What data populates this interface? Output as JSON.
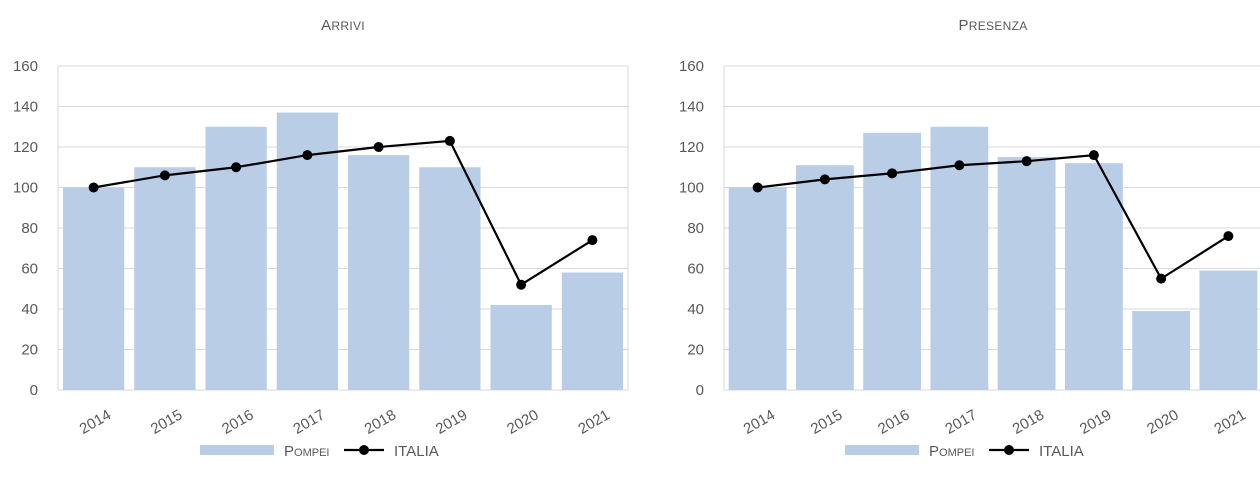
{
  "legend": {
    "bar_label": "Pompei",
    "line_label": "ITALIA"
  },
  "colors": {
    "bar": "#b9cde6",
    "line": "#000000",
    "grid": "#d9d9d9"
  },
  "chart_data": [
    {
      "type": "bar",
      "title": "Arrivi",
      "categories": [
        "2014",
        "2015",
        "2016",
        "2017",
        "2018",
        "2019",
        "2020",
        "2021"
      ],
      "series": [
        {
          "name": "Pompei",
          "type": "bar",
          "values": [
            100,
            110,
            130,
            137,
            116,
            110,
            42,
            58
          ]
        },
        {
          "name": "ITALIA",
          "type": "line",
          "values": [
            100,
            106,
            110,
            116,
            120,
            123,
            52,
            74
          ]
        }
      ],
      "ylim": [
        0,
        160
      ],
      "yticks": [
        0,
        20,
        40,
        60,
        80,
        100,
        120,
        140,
        160
      ],
      "grid": true,
      "legend_position": "bottom"
    },
    {
      "type": "bar",
      "title": "Presenza",
      "categories": [
        "2014",
        "2015",
        "2016",
        "2017",
        "2018",
        "2019",
        "2020",
        "2021"
      ],
      "series": [
        {
          "name": "Pompei",
          "type": "bar",
          "values": [
            100,
            111,
            127,
            130,
            115,
            112,
            39,
            59
          ]
        },
        {
          "name": "ITALIA",
          "type": "line",
          "values": [
            100,
            104,
            107,
            111,
            113,
            116,
            55,
            76
          ]
        }
      ],
      "ylim": [
        0,
        160
      ],
      "yticks": [
        0,
        20,
        40,
        60,
        80,
        100,
        120,
        140,
        160
      ],
      "grid": true,
      "legend_position": "bottom"
    }
  ]
}
